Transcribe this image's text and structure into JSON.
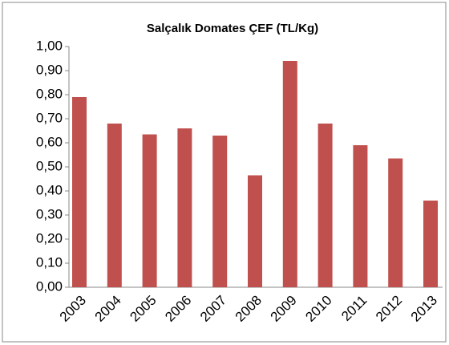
{
  "chart_data": {
    "type": "bar",
    "title": "Salçalık Domates ÇEF (TL/Kg)",
    "categories": [
      "2003",
      "2004",
      "2005",
      "2006",
      "2007",
      "2008",
      "2009",
      "2010",
      "2011",
      "2012",
      "2013"
    ],
    "values": [
      0.79,
      0.68,
      0.635,
      0.66,
      0.63,
      0.465,
      0.94,
      0.68,
      0.59,
      0.535,
      0.36
    ],
    "color": "#c0504d",
    "ylim": [
      0,
      1
    ],
    "yticks": [
      {
        "value": 0,
        "label": "0,00"
      },
      {
        "value": 0.1,
        "label": "0,10"
      },
      {
        "value": 0.2,
        "label": "0,20"
      },
      {
        "value": 0.3,
        "label": "0,30"
      },
      {
        "value": 0.4,
        "label": "0,40"
      },
      {
        "value": 0.5,
        "label": "0,50"
      },
      {
        "value": 0.6,
        "label": "0,60"
      },
      {
        "value": 0.7,
        "label": "0,70"
      },
      {
        "value": 0.8,
        "label": "0,80"
      },
      {
        "value": 0.9,
        "label": "0,90"
      },
      {
        "value": 1,
        "label": "1,00"
      }
    ],
    "grid": false
  }
}
